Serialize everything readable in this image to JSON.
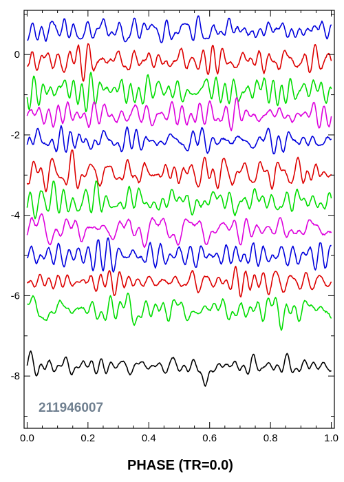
{
  "chart_data": {
    "type": "line",
    "title": "",
    "xlabel": "PHASE (TR=0.0)",
    "ylabel": "",
    "annotation": "211946007",
    "xlim": [
      -0.01,
      1.01
    ],
    "ylim": [
      -9.3,
      1.1
    ],
    "x_ticks": [
      "0.0",
      "0.2",
      "0.4",
      "0.6",
      "0.8",
      "1.0"
    ],
    "y_ticks": [
      "0",
      "-2",
      "-4",
      "-6",
      "-8"
    ],
    "grid": false,
    "legend": "none",
    "colors": {
      "blue": "#0000dd",
      "red": "#dd0000",
      "green": "#00dd00",
      "magenta": "#dd00dd",
      "black": "#000000",
      "annotation": "#708090"
    },
    "series": [
      {
        "color": "#0000dd",
        "offset": 0.6,
        "amplitude": 0.6
      },
      {
        "color": "#dd0000",
        "offset": -0.15,
        "amplitude": 0.6
      },
      {
        "color": "#00dd00",
        "offset": -0.9,
        "amplitude": 0.6
      },
      {
        "color": "#dd00dd",
        "offset": -1.5,
        "amplitude": 0.6
      },
      {
        "color": "#0000dd",
        "offset": -2.15,
        "amplitude": 0.6
      },
      {
        "color": "#dd0000",
        "offset": -2.95,
        "amplitude": 0.6
      },
      {
        "color": "#00dd00",
        "offset": -3.65,
        "amplitude": 0.6
      },
      {
        "color": "#dd00dd",
        "offset": -4.35,
        "amplitude": 0.6
      },
      {
        "color": "#0000dd",
        "offset": -5.0,
        "amplitude": 0.6
      },
      {
        "color": "#dd0000",
        "offset": -5.65,
        "amplitude": 0.5
      },
      {
        "color": "#00dd00",
        "offset": -6.35,
        "amplitude": 0.6
      },
      {
        "color": "#000000",
        "offset": -7.75,
        "amplitude": 0.4,
        "dip": {
          "x": 0.585,
          "depth": 0.6
        }
      }
    ]
  }
}
